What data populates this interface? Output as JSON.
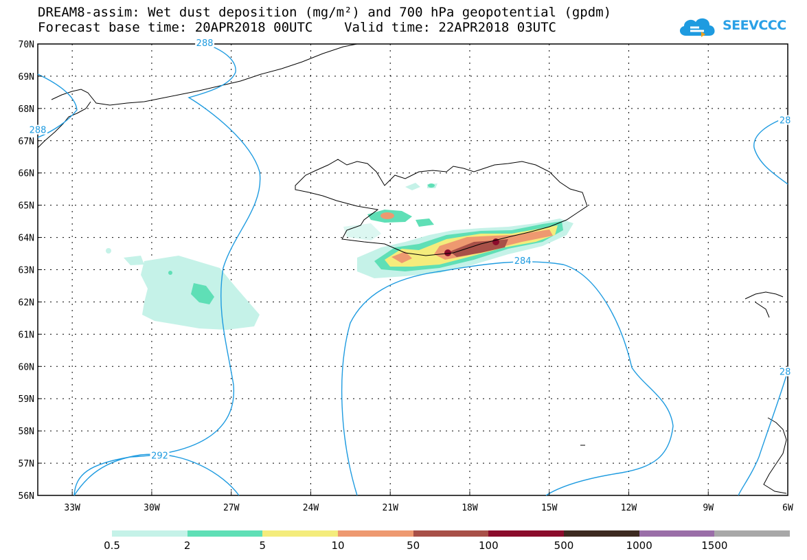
{
  "title": {
    "line1": "DREAM8-assim: Wet dust deposition (mg/m²) and 700 hPa geopotential (gpdm)",
    "line2": "Forecast base time: 20APR2018 00UTC    Valid time: 22APR2018 03UTC"
  },
  "logo": {
    "text": "SEEVCCC",
    "icon": "cloud-icon",
    "color": "#1e9be0"
  },
  "axes": {
    "lat_labels": [
      "70N",
      "69N",
      "68N",
      "67N",
      "66N",
      "65N",
      "64N",
      "63N",
      "62N",
      "61N",
      "60N",
      "59N",
      "58N",
      "57N",
      "56N"
    ],
    "lon_labels": [
      "33W",
      "30W",
      "27W",
      "24W",
      "21W",
      "18W",
      "15W",
      "12W",
      "9W",
      "6W"
    ]
  },
  "contours": {
    "color": "#1e9be0",
    "labels": [
      {
        "text": "288",
        "lon": -28.0,
        "lat": 70.0
      },
      {
        "text": "284",
        "lon": -16.0,
        "lat": 63.25
      },
      {
        "text": "292",
        "lon": -29.7,
        "lat": 57.2
      },
      {
        "text": "288",
        "lon": -34.3,
        "lat": 67.3
      },
      {
        "text": "28",
        "lon": -6.1,
        "lat": 67.6
      },
      {
        "text": "28",
        "lon": -6.1,
        "lat": 59.8
      }
    ]
  },
  "legend": {
    "colors": [
      "#c5f2e8",
      "#5fdfb6",
      "#f4ec7c",
      "#ee9970",
      "#a85048",
      "#8b0c2c",
      "#3d2a20",
      "#9a6ea8",
      "#a8a8a8"
    ],
    "labels": [
      "0.5",
      "2",
      "5",
      "10",
      "50",
      "100",
      "500",
      "1000",
      "1500"
    ]
  }
}
